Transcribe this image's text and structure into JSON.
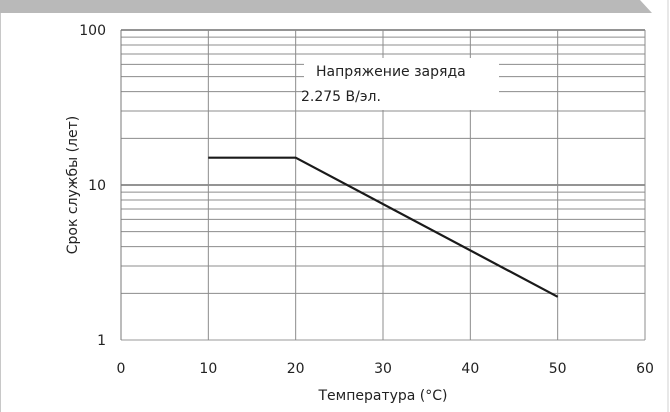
{
  "chart_data": {
    "type": "line",
    "title": "",
    "xlabel": "Температура (°C)",
    "ylabel": "Срок службы (лет)",
    "xlim": [
      0,
      60
    ],
    "ylim": [
      1,
      100
    ],
    "y_scale": "log",
    "grid": true,
    "x_ticks": [
      "0",
      "10",
      "20",
      "30",
      "40",
      "50",
      "60"
    ],
    "y_ticks": [
      "1",
      "10",
      "100"
    ],
    "series": [
      {
        "x": [
          10,
          20,
          50
        ],
        "y": [
          15,
          15,
          1.9
        ],
        "color": "#1a1a1a"
      }
    ],
    "annotation": {
      "line1": "Напряжение заряда",
      "line2": "2.275 В/эл."
    }
  }
}
